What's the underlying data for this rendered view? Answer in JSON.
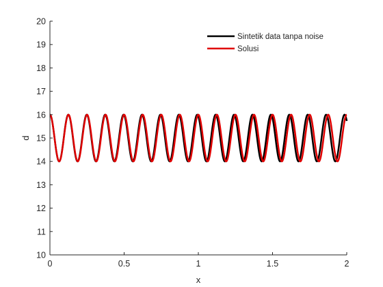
{
  "chart_data": {
    "type": "line",
    "xlabel": "x",
    "ylabel": "d",
    "xlim": [
      0,
      2
    ],
    "ylim": [
      10,
      20
    ],
    "x_ticks": [
      0,
      0.5,
      1,
      1.5,
      2
    ],
    "x_tick_labels": [
      "0",
      "0.5",
      "1",
      "1.5",
      "2"
    ],
    "y_ticks": [
      10,
      11,
      12,
      13,
      14,
      15,
      16,
      17,
      18,
      19,
      20
    ],
    "y_tick_labels": [
      "10",
      "11",
      "12",
      "13",
      "14",
      "15",
      "16",
      "17",
      "18",
      "19",
      "20"
    ],
    "grid": false,
    "legend_placement": "top-right",
    "series": [
      {
        "name": "Sintetik data tanpa noise",
        "color": "#000000",
        "x_start": 0,
        "x_end": 2,
        "mean": 15,
        "amplitude": 1,
        "cycles": 16.12,
        "phase": 1.5708
      },
      {
        "name": "Solusi",
        "color": "#e00000",
        "x_start": 0,
        "x_end": 2,
        "mean": 15,
        "amplitude": 1,
        "cycles": 16,
        "phase": 1.5708
      }
    ]
  }
}
